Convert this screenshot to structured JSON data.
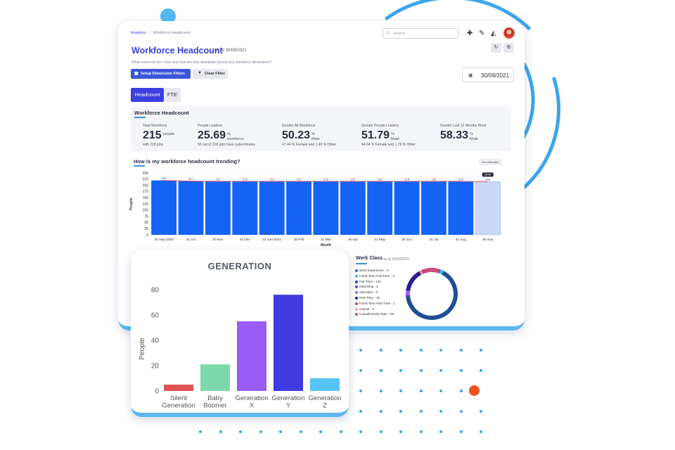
{
  "breadcrumb": {
    "parent": "Analytics",
    "current": "Workforce Headcount"
  },
  "search": {
    "placeholder": "Search"
  },
  "header": {
    "title": "Workforce Headcount",
    "as_at": "As At 30/09/2021",
    "description": "What resources do I have and how are they distributed across key workforce dimensions?"
  },
  "buttons": {
    "setup_filters": "Setup Dimension Filters",
    "clear_filter": "Clear Filter",
    "date": "30/09/2021"
  },
  "tabs": [
    {
      "label": "Headcount",
      "active": true
    },
    {
      "label": "FTE",
      "active": false
    }
  ],
  "kpi_section": {
    "title": "Workforce Headcount",
    "cards": [
      {
        "label": "Total Workforce",
        "value": "215",
        "unit": "people",
        "note": "with 218 jobs"
      },
      {
        "label": "People Leaders",
        "value": "25.69",
        "unit": "% workforce",
        "note": "56 out of 218 jobs have subordinates"
      },
      {
        "label": "Gender All Workforce",
        "value": "50.23",
        "unit": "% Male",
        "note": "47.44 % Female and 1.40 % Other"
      },
      {
        "label": "Gender People Leaders",
        "value": "51.79",
        "unit": "% Male",
        "note": "44.64 % Female and 1.79 % Other"
      },
      {
        "label": "Gender Last 12 Months Hired",
        "value": "58.33",
        "unit": "% Male",
        "note": ""
      }
    ]
  },
  "trend": {
    "title": "How is my workforce headcount trending?",
    "tag": "Non-filterable",
    "ylabel": "People",
    "xlabel": "Month",
    "highlight_label": "At At",
    "colors": {
      "bar": "#1463f3",
      "highlight": "#c9d8f7",
      "line": "#e8425e"
    }
  },
  "work_class": {
    "title": "Work Class",
    "subtitle": "as at 30/09/2021",
    "items": [
      {
        "label": "Work Experience - 2",
        "value": 2,
        "color": "#2f6fd6"
      },
      {
        "label": "Fixed-Term Full-Time - 4",
        "value": 4,
        "color": "#35c2f0"
      },
      {
        "label": "Full-Time - 143",
        "value": 143,
        "color": "#1f4e96"
      },
      {
        "label": "Internship - 2",
        "value": 2,
        "color": "#6a3ee0"
      },
      {
        "label": "Volunteer - 6",
        "value": 6,
        "color": "#a25ff0"
      },
      {
        "label": "Part-Time - 32",
        "value": 32,
        "color": "#2a1f8c"
      },
      {
        "label": "Fixed-Term Part-Time - 1",
        "value": 1,
        "color": "#e8425e"
      },
      {
        "label": "Casual - 2",
        "value": 2,
        "color": "#f4a3b5"
      },
      {
        "label": "Casual/Hourly Rate - 25",
        "value": 25,
        "color": "#c94c7c"
      }
    ]
  },
  "chart_data": [
    {
      "type": "bar",
      "title": "",
      "xlabel": "Month",
      "ylabel": "People",
      "categories": [
        "30 Sep-2020",
        "31 Oct",
        "30 Nov",
        "31 Dec",
        "31 Jan-2021",
        "28 Feb",
        "31 Mar",
        "30 Apr",
        "31 May",
        "30 Jun",
        "31 Jul",
        "31 Aug",
        "30 Sep"
      ],
      "values": [
        220,
        217,
        216,
        216,
        216,
        216,
        216,
        216,
        216,
        216,
        216,
        216,
        215
      ],
      "value_labels": [
        "220",
        "217",
        "216",
        "216",
        "216",
        "216",
        "216",
        "216",
        "216",
        "216",
        "216",
        "216",
        "215"
      ],
      "ylim": [
        0,
        250
      ],
      "yticks": [
        0,
        25,
        50,
        75,
        100,
        125,
        150,
        175,
        200,
        225,
        250
      ],
      "grid": true
    },
    {
      "type": "bar",
      "title": "GENERATION",
      "xlabel": "",
      "ylabel": "People",
      "categories": [
        "Silent Generation",
        "Baby Boomer",
        "Generation X",
        "Generation Y",
        "Generation Z"
      ],
      "category_lines": [
        [
          "Silent",
          "Generation"
        ],
        [
          "Baby",
          "Boomer"
        ],
        [
          "Generation",
          "X"
        ],
        [
          "Generation",
          "Y"
        ],
        [
          "Generation",
          "Z"
        ]
      ],
      "values": [
        5,
        21,
        55,
        76,
        10
      ],
      "colors": [
        "#e05255",
        "#7dd9ac",
        "#9b5cf5",
        "#3f3be0",
        "#56c2f7"
      ],
      "ylim": [
        0,
        80
      ],
      "yticks": [
        0,
        20,
        40,
        60,
        80
      ],
      "grid": false
    }
  ]
}
